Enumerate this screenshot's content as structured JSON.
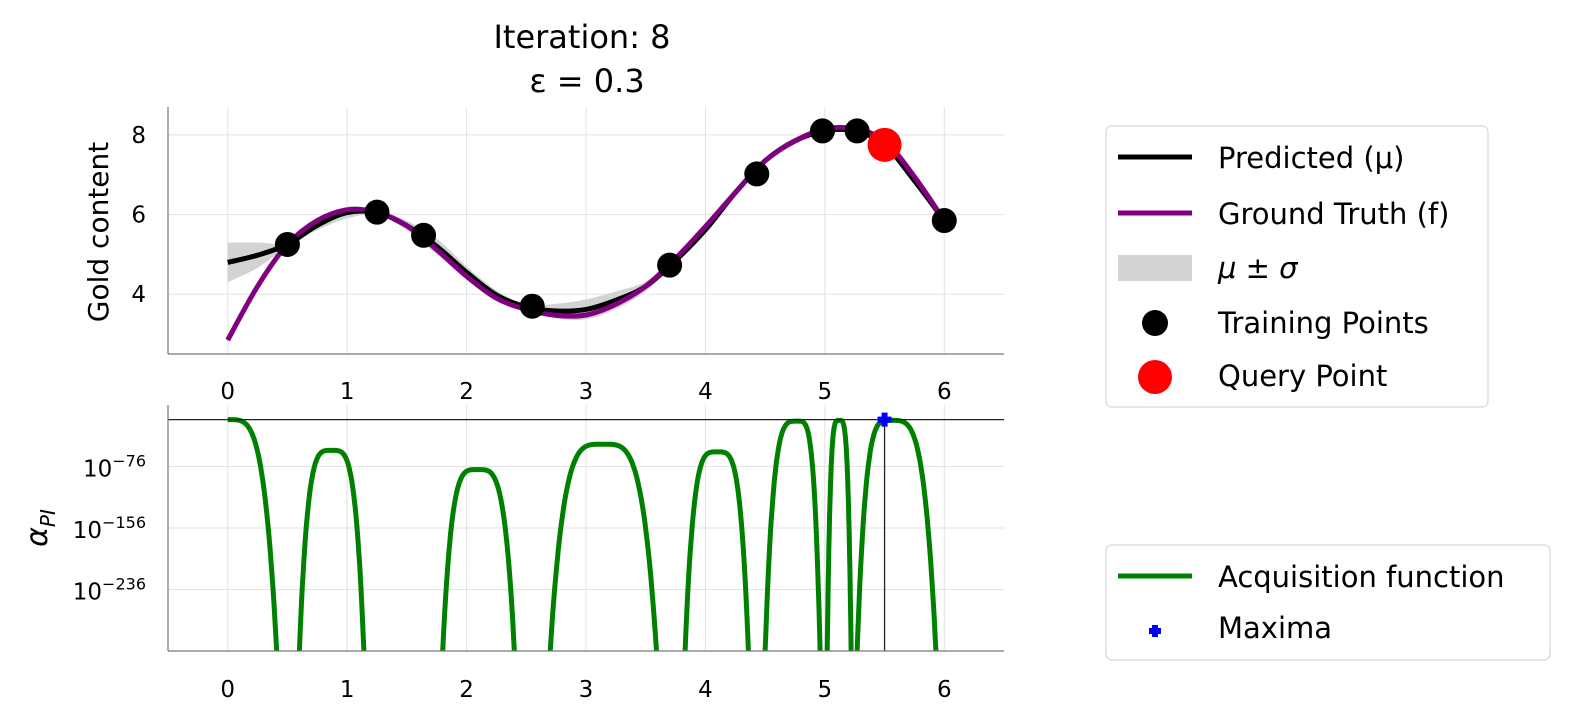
{
  "chart_data": [
    {
      "type": "line",
      "title": "Iteration: 8",
      "subtitle": "ε = 0.3",
      "ylabel": "Gold content",
      "xlim": [
        -0.5,
        6.5
      ],
      "ylim": [
        2.5,
        8.7
      ],
      "xticks": [
        0,
        1,
        2,
        3,
        4,
        5,
        6
      ],
      "yticks": [
        4,
        6,
        8
      ],
      "grid": true,
      "x": [
        0,
        0.25,
        0.5,
        0.75,
        1.0,
        1.25,
        1.5,
        1.75,
        2.0,
        2.25,
        2.5,
        2.75,
        3.0,
        3.25,
        3.5,
        3.75,
        4.0,
        4.25,
        4.5,
        4.75,
        5.0,
        5.25,
        5.5,
        5.75,
        6.0
      ],
      "series": [
        {
          "name": "Predicted (μ)",
          "color": "#000000",
          "values": [
            4.8,
            4.98,
            5.25,
            5.73,
            6.05,
            6.05,
            5.72,
            5.2,
            4.55,
            3.98,
            3.68,
            3.58,
            3.62,
            3.85,
            4.2,
            4.85,
            5.62,
            6.55,
            7.35,
            7.85,
            8.1,
            8.1,
            7.75,
            6.85,
            5.85
          ]
        },
        {
          "name": "Ground Truth (f)",
          "color": "#800080",
          "values": [
            2.85,
            4.2,
            5.25,
            5.85,
            6.12,
            6.06,
            5.72,
            5.12,
            4.45,
            3.9,
            3.62,
            3.47,
            3.48,
            3.75,
            4.2,
            4.9,
            5.7,
            6.55,
            7.35,
            7.85,
            8.15,
            8.15,
            7.85,
            6.95,
            5.85
          ]
        }
      ],
      "band": {
        "name": "μ ± σ",
        "color": "#d3d3d3",
        "sigma": [
          0.5,
          0.32,
          0.05,
          0.12,
          0.15,
          0.05,
          0.12,
          0.2,
          0.15,
          0.12,
          0.05,
          0.18,
          0.25,
          0.22,
          0.12,
          0.05,
          0.1,
          0.1,
          0.05,
          0.08,
          0.04,
          0.04,
          0.08,
          0.08,
          0.04
        ]
      },
      "training_points": {
        "name": "Training Points",
        "color": "#000000",
        "x": [
          0.5,
          1.25,
          1.64,
          2.55,
          3.7,
          4.43,
          4.98,
          5.27,
          6.0
        ],
        "y": [
          5.25,
          6.06,
          5.48,
          3.7,
          4.73,
          7.02,
          8.1,
          8.1,
          5.85
        ]
      },
      "query_point": {
        "name": "Query Point",
        "color": "#ff0000",
        "x": 5.5,
        "y": 7.75
      }
    },
    {
      "type": "line",
      "ylabel": "αPI",
      "yscale": "log",
      "xlim": [
        -0.5,
        6.5
      ],
      "ylim_exponent": [
        -316,
        4
      ],
      "xticks": [
        0,
        1,
        2,
        3,
        4,
        5,
        6
      ],
      "yticks_exponent": [
        -76,
        -156,
        -236
      ],
      "ytick_base": "10",
      "grid": true,
      "max_line_exponent": -15,
      "acquisition": {
        "name": "Acquisition function",
        "color": "#008000",
        "arches": [
          {
            "x0": null,
            "x1": 0.41,
            "peak_x": 0.0,
            "peak_exp": -15
          },
          {
            "x0": 0.6,
            "x1": 1.14,
            "peak_x": 0.87,
            "peak_exp": -55
          },
          {
            "x0": 1.8,
            "x1": 2.4,
            "peak_x": 2.09,
            "peak_exp": -80
          },
          {
            "x0": 2.7,
            "x1": 3.59,
            "peak_x": 3.14,
            "peak_exp": -47
          },
          {
            "x0": 3.83,
            "x1": 4.36,
            "peak_x": 4.1,
            "peak_exp": -57
          },
          {
            "x0": 4.5,
            "x1": 4.96,
            "peak_x": 4.77,
            "peak_exp": -17
          },
          {
            "x0": 5.02,
            "x1": 5.22,
            "peak_x": 5.12,
            "peak_exp": -16
          },
          {
            "x0": 5.27,
            "x1": 5.93,
            "peak_x": 5.55,
            "peak_exp": -16
          }
        ]
      },
      "maxima": {
        "name": "Maxima",
        "color": "#0000ff",
        "x": 5.5
      }
    }
  ],
  "legend_top": [
    "Predicted (μ)",
    "Ground Truth (f)",
    "μ ± σ",
    "Training Points",
    "Query Point"
  ],
  "legend_bottom": [
    "Acquisition function",
    "Maxima"
  ]
}
